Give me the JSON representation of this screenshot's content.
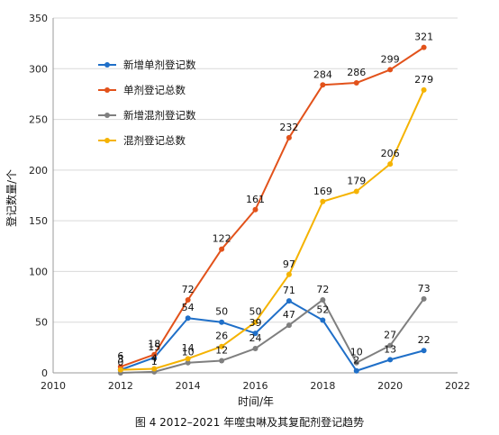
{
  "chart_data": {
    "type": "line",
    "caption": "图 4 2012–2021 年噬虫啉及其复配剂登记趋势",
    "xlabel": "时间/年",
    "ylabel": "登记数量/个",
    "xlim": [
      2010,
      2022
    ],
    "ylim": [
      0,
      350
    ],
    "xticks": [
      2010,
      2012,
      2014,
      2016,
      2018,
      2020,
      2022
    ],
    "yticks": [
      0,
      50,
      100,
      150,
      200,
      250,
      300,
      350
    ],
    "x": [
      2012,
      2013,
      2014,
      2015,
      2016,
      2017,
      2018,
      2019,
      2020,
      2021
    ],
    "grid": "horizontal",
    "legend_position": "top-left",
    "series": [
      {
        "name": "新增单剂登记数",
        "color": "#1f6fc8",
        "values": [
          3,
          15,
          54,
          50,
          39,
          71,
          52,
          2,
          13,
          22
        ],
        "labels": [
          "3",
          "15",
          "54",
          "50",
          "39",
          "71",
          "52",
          "2",
          "13",
          "22"
        ]
      },
      {
        "name": "单剂登记总数",
        "color": "#e2521b",
        "values": [
          6,
          18,
          72,
          122,
          161,
          232,
          284,
          286,
          299,
          321
        ],
        "labels": [
          "6",
          "18",
          "72",
          "122",
          "161",
          "232",
          "284",
          "286",
          "299",
          "321"
        ]
      },
      {
        "name": "新增混剂登记数",
        "color": "#7f7f7f",
        "values": [
          0,
          1,
          10,
          12,
          24,
          47,
          72,
          10,
          27,
          73
        ],
        "labels": [
          "0",
          "1",
          "10",
          "12",
          "24",
          "47",
          "72",
          "10",
          "27",
          "73"
        ]
      },
      {
        "name": "混剂登记总数",
        "color": "#f5b300",
        "values": [
          3,
          4,
          14,
          26,
          50,
          97,
          169,
          179,
          206,
          279
        ],
        "labels": [
          "3",
          "4",
          "14",
          "26",
          "50",
          "97",
          "169",
          "179",
          "206",
          "279"
        ]
      }
    ]
  }
}
